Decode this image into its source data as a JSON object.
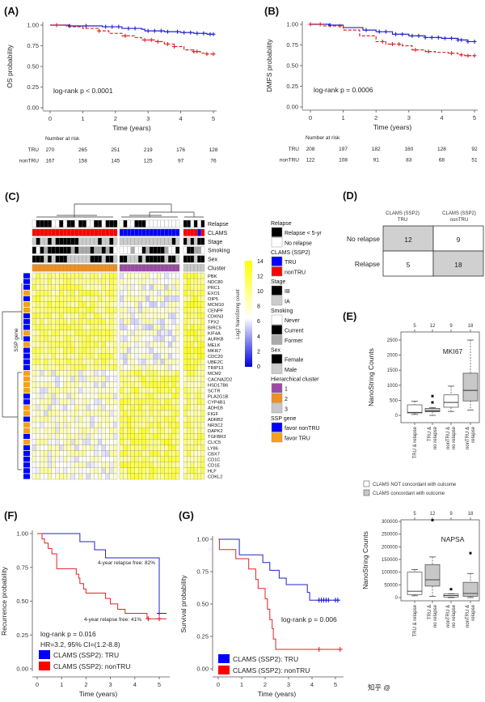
{
  "panel_labels": {
    "A": "(A)",
    "B": "(B)",
    "C": "(C)",
    "D": "(D)",
    "E": "(E)",
    "F": "(F)",
    "G": "(G)"
  },
  "colors": {
    "tru": "#2323c8",
    "nontru": "#e02228",
    "tru_legend": "#0000ff",
    "nontru_legend": "#ff0000",
    "cluster1": "#9b4aa3",
    "cluster2": "#f0901e",
    "cluster3": "#c8c8c8",
    "favor_tru": "#f5a018",
    "favor_nontru": "#0000ff"
  },
  "watermark": "知乎 @",
  "chart_data": [
    {
      "id": "A",
      "type": "line",
      "subtype": "kaplan-meier",
      "xlabel": "Time (years)",
      "ylabel": "OS probability",
      "xlim": [
        0,
        5
      ],
      "ylim": [
        0,
        1
      ],
      "xticks": [
        "0",
        "1",
        "2",
        "3",
        "4",
        "5"
      ],
      "yticks": [
        "0.00",
        "0.25",
        "0.50",
        "0.75",
        "1.00"
      ],
      "annotation": "log-rank p < 0.0001",
      "series": [
        {
          "name": "TRU",
          "dashed": false,
          "end": 5,
          "steps": [
            [
              0.6,
              0.99
            ],
            [
              1.6,
              0.98
            ],
            [
              2.2,
              0.96
            ],
            [
              2.8,
              0.95
            ],
            [
              2.9,
              0.93
            ],
            [
              3.5,
              0.92
            ],
            [
              4.0,
              0.91
            ],
            [
              4.4,
              0.9
            ],
            [
              4.8,
              0.89
            ]
          ],
          "censor": [
            0.6,
            1.1,
            1.7,
            1.9,
            2.1,
            2.4,
            2.6,
            3.0,
            3.2,
            3.4,
            3.6,
            3.9,
            4.1,
            4.3,
            4.5,
            4.7,
            4.9,
            5.0
          ]
        },
        {
          "name": "nonTRU",
          "dashed": true,
          "end": 5,
          "steps": [
            [
              0.5,
              0.98
            ],
            [
              1.0,
              0.96
            ],
            [
              1.5,
              0.93
            ],
            [
              1.8,
              0.9
            ],
            [
              2.2,
              0.87
            ],
            [
              2.6,
              0.85
            ],
            [
              2.8,
              0.82
            ],
            [
              3.2,
              0.8
            ],
            [
              3.5,
              0.77
            ],
            [
              3.8,
              0.74
            ],
            [
              4.1,
              0.7
            ],
            [
              4.4,
              0.68
            ],
            [
              4.6,
              0.66
            ],
            [
              4.8,
              0.65
            ]
          ],
          "censor": [
            0.2,
            1.5,
            2.3,
            2.9,
            3.1,
            3.3,
            3.6,
            3.8,
            4.4,
            4.5,
            4.8,
            5.0
          ]
        }
      ],
      "risk_table": {
        "title": "Number at risk",
        "rows": [
          {
            "name": "TRU",
            "values": [
              "270",
              "265",
              "251",
              "219",
              "176",
              "128"
            ]
          },
          {
            "name": "nonTRU",
            "values": [
              "167",
              "158",
              "145",
              "125",
              "97",
              "76"
            ]
          }
        ]
      }
    },
    {
      "id": "B",
      "type": "line",
      "subtype": "kaplan-meier",
      "xlabel": "Time (years)",
      "ylabel": "DMFS probability",
      "xlim": [
        0,
        5
      ],
      "ylim": [
        0,
        1
      ],
      "xticks": [
        "0",
        "1",
        "2",
        "3",
        "4",
        "5"
      ],
      "yticks": [
        "0.00",
        "0.25",
        "0.50",
        "0.75",
        "1.00"
      ],
      "annotation": "log-rank p = 0.0006",
      "series": [
        {
          "name": "TRU",
          "dashed": false,
          "end": 5,
          "steps": [
            [
              0.6,
              0.99
            ],
            [
              1.0,
              0.96
            ],
            [
              1.6,
              0.93
            ],
            [
              2.0,
              0.91
            ],
            [
              2.5,
              0.88
            ],
            [
              3.0,
              0.86
            ],
            [
              3.5,
              0.84
            ],
            [
              4.0,
              0.83
            ],
            [
              4.5,
              0.81
            ],
            [
              4.8,
              0.79
            ]
          ],
          "censor": [
            0.6,
            1.7,
            2.1,
            2.3,
            2.6,
            2.8,
            3.1,
            3.3,
            3.5,
            3.7,
            3.9,
            4.1,
            4.3,
            4.5,
            4.6,
            4.8,
            5.0
          ]
        },
        {
          "name": "nonTRU",
          "dashed": true,
          "end": 5,
          "steps": [
            [
              0.4,
              0.98
            ],
            [
              1.0,
              0.93
            ],
            [
              1.5,
              0.86
            ],
            [
              2.0,
              0.79
            ],
            [
              2.3,
              0.76
            ],
            [
              2.8,
              0.74
            ],
            [
              3.1,
              0.69
            ],
            [
              3.5,
              0.67
            ],
            [
              3.8,
              0.66
            ],
            [
              4.2,
              0.65
            ],
            [
              4.5,
              0.63
            ],
            [
              4.7,
              0.62
            ]
          ],
          "censor": [
            0,
            0.3,
            0.9,
            2.2,
            2.5,
            2.7,
            3.2,
            3.6,
            4.3,
            4.6,
            4.8,
            5.0
          ]
        }
      ],
      "risk_table": {
        "title": "Number at risk",
        "rows": [
          {
            "name": "TRU",
            "values": [
              "208",
              "197",
              "182",
              "160",
              "128",
              "92"
            ]
          },
          {
            "name": "nonTRU",
            "values": [
              "122",
              "108",
              "91",
              "83",
              "68",
              "51"
            ]
          }
        ]
      }
    },
    {
      "id": "C",
      "type": "heatmap",
      "colorbar": {
        "label": "Log2 NanoString count",
        "ticks": [
          "0",
          "2",
          "4",
          "6",
          "8",
          "10",
          "12",
          "14"
        ],
        "range": [
          0,
          14
        ]
      },
      "row_axis_label": "SSP gene",
      "annotation_labels": [
        "Relapse",
        "CLAMS",
        "Stage",
        "Smoking",
        "Sex",
        "Cluster"
      ],
      "genes": [
        "PBK",
        "NDC80",
        "PRC1",
        "EXO1",
        "OIP5",
        "MCM10",
        "CENPF",
        "CDKN3",
        "TPX2",
        "BIRC5",
        "KIF4A",
        "AURKB",
        "MELK",
        "MKI67",
        "CDC20",
        "UBE2C",
        "TRIP13",
        "MCM2",
        "CACNA2D2",
        "HSD17B6",
        "SCTR",
        "PLA2G1B",
        "CYP4B1",
        "ADH1B",
        "FIGF",
        "ADRB2",
        "NR3C2",
        "DAPK2",
        "TGFBR3",
        "CLIC5",
        "LY86",
        "CBX7",
        "CD1C",
        "CD1E",
        "HLF",
        "CDKL2"
      ],
      "ssp_gene": "BBBOBOOBBBOBOBBBBOOOOBBOOBOOBOBBBBBB",
      "group_sizes": [
        22,
        16,
        6
      ],
      "group_mean_log2": {
        "proliferation_genes": [
          10.5,
          7.2,
          11.5
        ],
        "other_genes": [
          7.6,
          11.0,
          10.2
        ]
      },
      "annotations": {
        "relapse": "01111001011011001101110100111000000000110101",
        "clams": "NNNNNNNNNNNNNNNNNNNNNNTTTTTTTTTTTTTTTTNNNNTN",
        "stage": "ABAABABBBBBBAAAAABAABAAAAAAAAAAAAAAABABABABB",
        "smoking": "CNCFCCCCCCFCFFFCFFCFCNNNNFNNCFCCCCFNNCNCCFFN",
        "sex": "FFFMFMFFFMMMMMMFFFMFFMFFMMMFMFFFFFMFFMFFFMFF",
        "cluster": "22222222222222222222221111111111111111333333"
      }
    },
    {
      "id": "D",
      "type": "table",
      "columns": [
        "CLAMS (SSP2)",
        "TRU",
        "CLAMS (SSP2)",
        "nonTRU"
      ],
      "rows": [
        {
          "label": "No relapse",
          "values": [
            "12",
            "9"
          ]
        },
        {
          "label": "Relapse",
          "values": [
            "5",
            "18"
          ]
        }
      ]
    },
    {
      "id": "E1",
      "type": "box",
      "title": "MKI67",
      "ylabel": "NanoString Counts",
      "ylim": [
        0,
        2500
      ],
      "yticks": [
        "0",
        "500",
        "1000",
        "1500",
        "2000",
        "2500"
      ],
      "counts": [
        "5",
        "12",
        "9",
        "18"
      ],
      "categories": [
        [
          "TRU & relapse"
        ],
        [
          "TRU &",
          "no relapse"
        ],
        [
          "nonTRU &",
          "no relapse"
        ],
        [
          "nonTRU &",
          "relapse"
        ]
      ],
      "concordant": [
        false,
        true,
        false,
        true
      ],
      "boxes": [
        [
          30,
          80,
          100,
          350,
          470,
          []
        ],
        [
          0,
          120,
          150,
          230,
          260,
          [
            430,
            640
          ]
        ],
        [
          130,
          270,
          430,
          680,
          970,
          []
        ],
        [
          180,
          480,
          830,
          1400,
          2500,
          []
        ]
      ]
    },
    {
      "id": "E2",
      "type": "box",
      "title": "NAPSA",
      "ylabel": "NanoString Counts",
      "ylim": [
        0,
        300000
      ],
      "yticks": [
        "0",
        "50000",
        "100000",
        "150000",
        "200000",
        "250000",
        "300000"
      ],
      "counts": [
        "5",
        "12",
        "9",
        "18"
      ],
      "categories": [
        [
          "TRU & relapse"
        ],
        [
          "TRU &",
          "no relapse"
        ],
        [
          "nonTRU &",
          "no relapse"
        ],
        [
          "nonTRU &",
          "relapse"
        ]
      ],
      "concordant": [
        false,
        true,
        false,
        true
      ],
      "boxes": [
        [
          7000,
          12000,
          25000,
          100000,
          110000,
          []
        ],
        [
          5000,
          45000,
          70000,
          130000,
          160000,
          [
            305000
          ]
        ],
        [
          0,
          2000,
          8000,
          14000,
          15000,
          [
            33000
          ]
        ],
        [
          0,
          5000,
          16000,
          60000,
          95000,
          [
            175000
          ]
        ]
      ]
    },
    {
      "id": "F",
      "type": "line",
      "subtype": "kaplan-meier",
      "xlabel": "Time (years)",
      "ylabel": "Recurrence probability",
      "xlim": [
        0,
        5.3
      ],
      "ylim": [
        0,
        1
      ],
      "xticks": [
        "0",
        "1",
        "2",
        "3",
        "4",
        "5"
      ],
      "yticks": [
        "0.00",
        "0.25",
        "0.50",
        "0.75",
        "1.00"
      ],
      "annotations": [
        "4-year relapse free: 82%",
        "4-year relapse free: 41%",
        "log-rank p = 0.016",
        "HR=3.2, 95% CI=(1.2-8.8)"
      ],
      "legend": [
        "CLAMS (SSP2): TRU",
        "CLAMS (SSP2): nonTRU"
      ],
      "series": [
        {
          "name": "TRU",
          "dashed": false,
          "end": 5.3,
          "steps": [
            [
              1.75,
              0.94
            ],
            [
              2.35,
              0.88
            ],
            [
              2.8,
              0.82
            ],
            [
              5.0,
              0.41
            ]
          ],
          "censor": [
            5.0
          ]
        },
        {
          "name": "nonTRU",
          "dashed": false,
          "end": 5.3,
          "steps": [
            [
              0.2,
              0.96
            ],
            [
              0.3,
              0.93
            ],
            [
              0.45,
              0.89
            ],
            [
              0.6,
              0.85
            ],
            [
              0.8,
              0.74
            ],
            [
              1.6,
              0.7
            ],
            [
              1.7,
              0.67
            ],
            [
              1.75,
              0.63
            ],
            [
              1.9,
              0.59
            ],
            [
              2.0,
              0.56
            ],
            [
              2.8,
              0.52
            ],
            [
              3.0,
              0.48
            ],
            [
              3.3,
              0.44
            ],
            [
              3.6,
              0.41
            ],
            [
              4.5,
              0.37
            ]
          ],
          "censor": [
            4.55,
            5.0
          ]
        }
      ]
    },
    {
      "id": "G",
      "type": "line",
      "subtype": "kaplan-meier",
      "xlabel": "Time (years)",
      "ylabel": "Survival probability",
      "xlim": [
        0,
        5.2
      ],
      "ylim": [
        0,
        1
      ],
      "xticks": [
        "0",
        "1",
        "2",
        "3",
        "4",
        "5"
      ],
      "yticks": [
        "0.00",
        "0.25",
        "0.50",
        "0.75",
        "1.00"
      ],
      "annotations": [
        "log-rank p = 0.006"
      ],
      "legend": [
        "CLAMS (SSP2): TRU",
        "CLAMS (SSP2): nonTRU"
      ],
      "series": [
        {
          "name": "TRU",
          "dashed": false,
          "end": 5.15,
          "steps": [
            [
              0.9,
              0.88
            ],
            [
              1.9,
              0.82
            ],
            [
              2.2,
              0.76
            ],
            [
              2.6,
              0.7
            ],
            [
              2.9,
              0.65
            ],
            [
              3.8,
              0.59
            ],
            [
              3.9,
              0.53
            ]
          ],
          "censor": [
            4.3,
            4.4,
            4.5,
            4.6,
            4.7,
            5.0,
            5.1
          ]
        },
        {
          "name": "nonTRU",
          "dashed": false,
          "end": 5.2,
          "steps": [
            [
              0.05,
              0.92
            ],
            [
              0.75,
              0.85
            ],
            [
              1.3,
              0.77
            ],
            [
              1.6,
              0.69
            ],
            [
              1.7,
              0.62
            ],
            [
              2.0,
              0.54
            ],
            [
              2.1,
              0.46
            ],
            [
              2.2,
              0.38
            ],
            [
              2.3,
              0.31
            ],
            [
              2.35,
              0.23
            ],
            [
              2.45,
              0.15
            ]
          ],
          "censor": [
            4.3,
            5.2
          ]
        }
      ]
    }
  ],
  "legend_c": [
    {
      "title": "Relapse",
      "items": [
        {
          "label": "Relapse < 5-yr",
          "color": "#000000"
        },
        {
          "label": "No relapse",
          "color": "#ffffff"
        }
      ]
    },
    {
      "title": "CLAMS (SSP2)",
      "items": [
        {
          "label": "TRU",
          "color": "#0000ff"
        },
        {
          "label": "nonTRU",
          "color": "#ff0000"
        }
      ]
    },
    {
      "title": "Stage",
      "items": [
        {
          "label": "IB",
          "color": "#000000"
        },
        {
          "label": "IA",
          "color": "#cccccc"
        }
      ]
    },
    {
      "title": "Smoking",
      "items": [
        {
          "label": "Never",
          "color": "#ffffff"
        },
        {
          "label": "Current",
          "color": "#000000"
        },
        {
          "label": "Former",
          "color": "#aaaaaa"
        }
      ]
    },
    {
      "title": "Sex",
      "items": [
        {
          "label": "Female",
          "color": "#000000"
        },
        {
          "label": "Male",
          "color": "#cccccc"
        }
      ]
    },
    {
      "title": "Hierarchical cluster",
      "items": [
        {
          "label": "1",
          "color": "#9b4aa3"
        },
        {
          "label": "2",
          "color": "#f0901e"
        },
        {
          "label": "3",
          "color": "#c8c8c8"
        }
      ]
    },
    {
      "title": "SSP gene",
      "items": [
        {
          "label": "favor nonTRU",
          "color": "#0000ff"
        },
        {
          "label": "favor TRU",
          "color": "#f5a018"
        }
      ]
    }
  ],
  "legend_e": [
    "CLAMS NOT concordant with outcome",
    "CLAMS concordant with outcome"
  ]
}
